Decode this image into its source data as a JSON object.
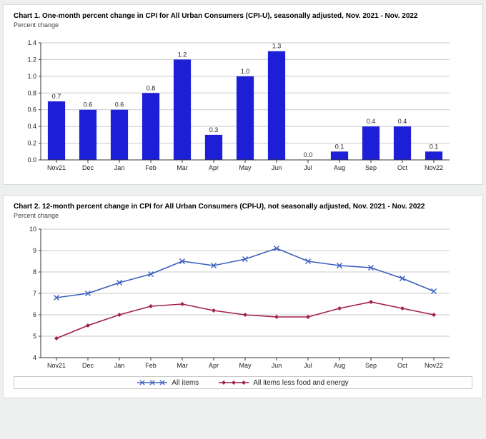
{
  "chart1": {
    "type": "bar",
    "title": "Chart 1. One-month percent change in CPI for All Urban Consumers (CPI-U), seasonally adjusted, Nov. 2021 - Nov. 2022",
    "subtitle": "Percent change",
    "categories": [
      "Nov21",
      "Dec",
      "Jan",
      "Feb",
      "Mar",
      "Apr",
      "May",
      "Jun",
      "Jul",
      "Aug",
      "Sep",
      "Oct",
      "Nov22"
    ],
    "values": [
      0.7,
      0.6,
      0.6,
      0.8,
      1.2,
      0.3,
      1.0,
      1.3,
      0.0,
      0.1,
      0.4,
      0.4,
      0.1
    ],
    "bar_color": "#1c1fd6",
    "ylim": [
      0.0,
      1.4
    ],
    "ytick_step": 0.2,
    "yticks": [
      "0.0",
      "0.2",
      "0.4",
      "0.6",
      "0.8",
      "1.0",
      "1.2",
      "1.4"
    ],
    "background_color": "#ffffff",
    "grid_color": "#c9c9c9",
    "axis_color": "#333333",
    "bar_width": 0.55,
    "label_fontsize": 9,
    "title_fontsize": 10
  },
  "chart2": {
    "type": "line",
    "title": "Chart 2. 12-month percent change in CPI for All Urban Consumers (CPI-U), not seasonally adjusted, Nov. 2021 - Nov. 2022",
    "subtitle": "Percent change",
    "categories": [
      "Nov21",
      "Dec",
      "Jan",
      "Feb",
      "Mar",
      "Apr",
      "May",
      "Jun",
      "Jul",
      "Aug",
      "Sep",
      "Oct",
      "Nov22"
    ],
    "ylim": [
      4,
      10
    ],
    "ytick_step": 1,
    "yticks_numeric": [
      4,
      5,
      6,
      7,
      8,
      9,
      10
    ],
    "yticks": [
      "4",
      "5",
      "6",
      "7",
      "8",
      "9",
      "10"
    ],
    "series": [
      {
        "name": "All items",
        "values": [
          6.8,
          7.0,
          7.5,
          7.9,
          8.5,
          8.3,
          8.6,
          9.1,
          8.5,
          8.3,
          8.2,
          7.7,
          7.1
        ],
        "color": "#3c5fbf",
        "marker": "x",
        "line_width": 1.6
      },
      {
        "name": "All items less food and energy",
        "values": [
          4.9,
          5.5,
          6.0,
          6.4,
          6.5,
          6.2,
          6.0,
          5.9,
          5.9,
          6.3,
          6.6,
          6.3,
          6.0
        ],
        "color": "#a21f4a",
        "marker": "diamond",
        "line_width": 1.6
      }
    ],
    "legend_border_color": "#c9c9c9",
    "background_color": "#ffffff",
    "grid_color": "#c9c9c9",
    "axis_color": "#333333",
    "label_fontsize": 9,
    "title_fontsize": 10
  }
}
